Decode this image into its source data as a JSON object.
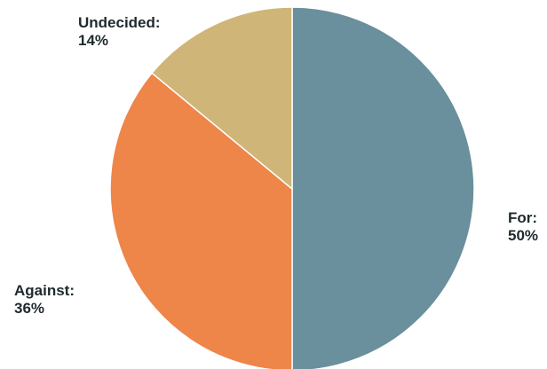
{
  "chart_data": {
    "type": "pie",
    "title": "",
    "slices": [
      {
        "label": "For",
        "value": 50,
        "percent_text": "50%",
        "color": "#69909c"
      },
      {
        "label": "Against",
        "value": 36,
        "percent_text": "36%",
        "color": "#ee8549"
      },
      {
        "label": "Undecided",
        "value": 14,
        "percent_text": "14%",
        "color": "#cfb577"
      }
    ],
    "slice_border_color": "#ffffff",
    "legend": "none"
  },
  "labels": {
    "for": {
      "name": "For:",
      "pct": "50%"
    },
    "against": {
      "name": "Against:",
      "pct": "36%"
    },
    "undecided": {
      "name": "Undecided:",
      "pct": "14%"
    }
  }
}
